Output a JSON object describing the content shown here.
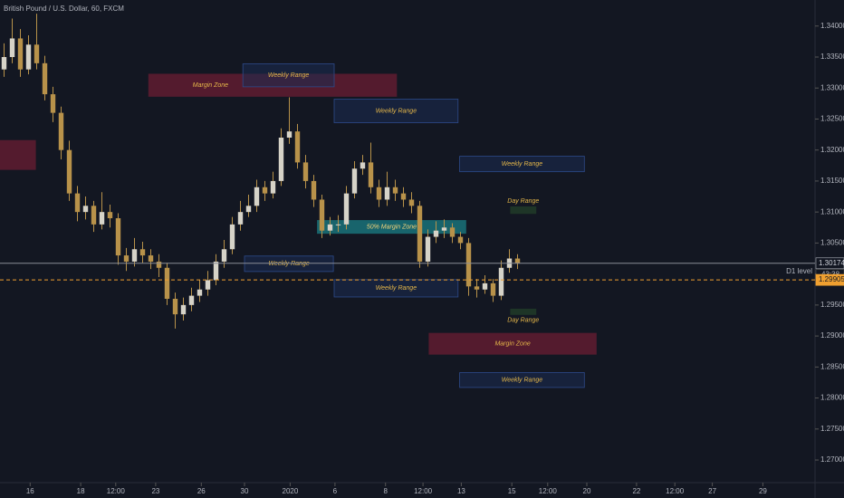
{
  "chart_data": {
    "type": "candlestick",
    "title": "British Pound / U.S. Dollar, 60, FXCM",
    "x": [
      0.5,
      1.5,
      2.5,
      3.5,
      4.5,
      5.5,
      6.5,
      7.5,
      8.5,
      9.5,
      10.5,
      11.5,
      12.5,
      13.5,
      14.5,
      15.5,
      16.5,
      17.5,
      18.5,
      19.5,
      20.5,
      21.5,
      22.5,
      23.5,
      24.5,
      25.5,
      26.5,
      27.5,
      28.5,
      29.5,
      30.5,
      31.5,
      32.5,
      33.5,
      34.5,
      35.5,
      36.5,
      37.5,
      38.5,
      39.5,
      40.5,
      41.5,
      42.5,
      43.5,
      44.5,
      45.5,
      46.5,
      47.5,
      48.5,
      49.5,
      50.5,
      51.5,
      52.5,
      53.5,
      54.5,
      55.5,
      56.5,
      57.5,
      58.5,
      59.5,
      60.5,
      61.5,
      62.5,
      63.5
    ],
    "open": [
      1.333,
      1.335,
      1.338,
      1.333,
      1.337,
      1.334,
      1.329,
      1.326,
      1.32,
      1.313,
      1.31,
      1.311,
      1.308,
      1.31,
      1.309,
      1.303,
      1.302,
      1.304,
      1.303,
      1.302,
      1.301,
      1.296,
      1.2935,
      1.295,
      1.2965,
      1.2975,
      1.299,
      1.302,
      1.304,
      1.308,
      1.31,
      1.311,
      1.314,
      1.313,
      1.315,
      1.322,
      1.323,
      1.318,
      1.315,
      1.312,
      1.307,
      1.308,
      1.308,
      1.313,
      1.317,
      1.318,
      1.314,
      1.312,
      1.314,
      1.313,
      1.312,
      1.311,
      1.302,
      1.306,
      1.307,
      1.3075,
      1.306,
      1.305,
      1.298,
      1.2975,
      1.2985,
      1.2965,
      1.301,
      1.3025
    ],
    "high": [
      1.3372,
      1.3412,
      1.3395,
      1.3385,
      1.342,
      1.3352,
      1.3302,
      1.327,
      1.3215,
      1.3142,
      1.3125,
      1.3118,
      1.3132,
      1.3112,
      1.3098,
      1.3042,
      1.3058,
      1.3052,
      1.304,
      1.3032,
      1.3018,
      1.297,
      1.2962,
      1.2978,
      1.299,
      1.3005,
      1.3032,
      1.3055,
      1.3092,
      1.3118,
      1.3128,
      1.3152,
      1.315,
      1.3165,
      1.3235,
      1.3285,
      1.3242,
      1.3192,
      1.316,
      1.3128,
      1.3092,
      1.3095,
      1.3142,
      1.3182,
      1.3192,
      1.3212,
      1.3152,
      1.3165,
      1.3152,
      1.314,
      1.3132,
      1.3118,
      1.3072,
      1.3085,
      1.3088,
      1.3082,
      1.3068,
      1.3058,
      1.2992,
      1.2998,
      1.2992,
      1.3022,
      1.304,
      1.3032
    ],
    "low": [
      1.3318,
      1.334,
      1.3318,
      1.3322,
      1.333,
      1.328,
      1.3245,
      1.3185,
      1.3118,
      1.3085,
      1.3088,
      1.3068,
      1.3072,
      1.3075,
      1.3015,
      1.3005,
      1.3012,
      1.3018,
      1.3008,
      1.2995,
      1.295,
      1.2912,
      1.2925,
      1.294,
      1.2955,
      1.2965,
      1.2982,
      1.301,
      1.3032,
      1.307,
      1.3092,
      1.31,
      1.3118,
      1.3122,
      1.3142,
      1.321,
      1.317,
      1.3138,
      1.3108,
      1.3058,
      1.3062,
      1.3068,
      1.3072,
      1.3122,
      1.316,
      1.313,
      1.3108,
      1.311,
      1.3118,
      1.3108,
      1.3098,
      1.301,
      1.3012,
      1.305,
      1.3058,
      1.305,
      1.304,
      1.2965,
      1.2962,
      1.2968,
      1.2955,
      1.2958,
      1.3002,
      1.3008
    ],
    "close": [
      1.335,
      1.338,
      1.333,
      1.337,
      1.334,
      1.329,
      1.326,
      1.32,
      1.313,
      1.31,
      1.311,
      1.308,
      1.31,
      1.309,
      1.303,
      1.302,
      1.304,
      1.303,
      1.302,
      1.301,
      1.296,
      1.2935,
      1.295,
      1.2965,
      1.2975,
      1.299,
      1.302,
      1.304,
      1.308,
      1.31,
      1.311,
      1.314,
      1.313,
      1.315,
      1.322,
      1.323,
      1.318,
      1.315,
      1.312,
      1.307,
      1.308,
      1.308,
      1.313,
      1.317,
      1.318,
      1.314,
      1.312,
      1.314,
      1.313,
      1.312,
      1.311,
      1.302,
      1.306,
      1.307,
      1.3075,
      1.306,
      1.305,
      1.298,
      1.2975,
      1.2985,
      1.2965,
      1.301,
      1.3025,
      1.3017
    ],
    "up_color": "#d6d3c8",
    "down_color": "#b8924a",
    "xlim": [
      0,
      100
    ],
    "xticks": [
      {
        "value": 3.7,
        "label": "16"
      },
      {
        "value": 9.9,
        "label": "18"
      },
      {
        "value": 14.2,
        "label": "12:00"
      },
      {
        "value": 19.1,
        "label": "23"
      },
      {
        "value": 24.7,
        "label": "26"
      },
      {
        "value": 30,
        "label": "30"
      },
      {
        "value": 35.6,
        "label": "2020"
      },
      {
        "value": 41.1,
        "label": "6"
      },
      {
        "value": 47.3,
        "label": "8"
      },
      {
        "value": 51.9,
        "label": "12:00"
      },
      {
        "value": 56.6,
        "label": "13"
      },
      {
        "value": 62.8,
        "label": "15"
      },
      {
        "value": 67.2,
        "label": "12:00"
      },
      {
        "value": 72,
        "label": "20"
      },
      {
        "value": 78.1,
        "label": "22"
      },
      {
        "value": 82.8,
        "label": "12:00"
      },
      {
        "value": 87.4,
        "label": "27"
      },
      {
        "value": 93.6,
        "label": "29"
      }
    ],
    "ylim": [
      1.2665,
      1.3442
    ],
    "yticks": [
      {
        "value": 1.34,
        "label": "1.34000"
      },
      {
        "value": 1.335,
        "label": "1.33500"
      },
      {
        "value": 1.33,
        "label": "1.33000"
      },
      {
        "value": 1.325,
        "label": "1.32500"
      },
      {
        "value": 1.32,
        "label": "1.32000"
      },
      {
        "value": 1.315,
        "label": "1.31500"
      },
      {
        "value": 1.31,
        "label": "1.31000"
      },
      {
        "value": 1.305,
        "label": "1.30500"
      },
      {
        "value": 1.3,
        "label": "1.30000"
      },
      {
        "value": 1.295,
        "label": "1.29500"
      },
      {
        "value": 1.29,
        "label": "1.29000"
      },
      {
        "value": 1.285,
        "label": "1.28500"
      },
      {
        "value": 1.28,
        "label": "1.28000"
      },
      {
        "value": 1.275,
        "label": "1.27500"
      },
      {
        "value": 1.27,
        "label": "1.27000"
      }
    ],
    "zones": [
      {
        "x": [
          0,
          4.4
        ],
        "y": [
          1.3168,
          1.3216
        ],
        "color": "#6b1e33"
      },
      {
        "label": "Margin Zone",
        "x": [
          18.2,
          48.7
        ],
        "y": [
          1.3286,
          1.3323
        ],
        "color": "#6b1e33"
      },
      {
        "label": "Weekly Range",
        "x": [
          29.8,
          41
        ],
        "y": [
          1.3302,
          1.3339
        ],
        "color": "#1c2c52"
      },
      {
        "label": "Weekly Range",
        "x": [
          41,
          56.2
        ],
        "y": [
          1.3244,
          1.3282
        ],
        "color": "#1c2c52"
      },
      {
        "label": "Weekly Range",
        "x": [
          56.4,
          71.7
        ],
        "y": [
          1.3165,
          1.319
        ],
        "color": "#1c2c52"
      },
      {
        "label": "Day Range",
        "x": [
          62.6,
          65.8
        ],
        "y": [
          1.3097,
          1.3109
        ],
        "color": "#23402a"
      },
      {
        "label": "50% Margin Zone",
        "x": [
          38.9,
          57.2
        ],
        "y": [
          1.3065,
          1.3087
        ],
        "color": "#1b7f86"
      },
      {
        "label": "Weekly Range",
        "x": [
          30,
          40.9
        ],
        "y": [
          1.3004,
          1.3029
        ],
        "color": "#1c2c52"
      },
      {
        "label": "Weekly Range",
        "x": [
          41,
          56.2
        ],
        "y": [
          1.2963,
          1.2991
        ],
        "color": "#1c2c52"
      },
      {
        "label": "Day Range",
        "x": [
          62.6,
          65.8
        ],
        "y": [
          1.2934,
          1.2944
        ],
        "color": "#23402a"
      },
      {
        "label": "Margin Zone",
        "x": [
          52.6,
          73.2
        ],
        "y": [
          1.287,
          1.2905
        ],
        "color": "#6b1e33"
      },
      {
        "label": "Weekly Range",
        "x": [
          56.4,
          71.7
        ],
        "y": [
          1.2817,
          1.2841
        ],
        "color": "#1c2c52"
      }
    ],
    "levels": [
      {
        "value": 1.30174,
        "label": "1.30174",
        "color": "#8a8d96",
        "style": "solid"
      },
      {
        "value": 1.29905,
        "label": "1.29905",
        "color": "#f0a030",
        "style": "dashed",
        "name": "D1 level"
      }
    ],
    "countdown": "43:38"
  }
}
